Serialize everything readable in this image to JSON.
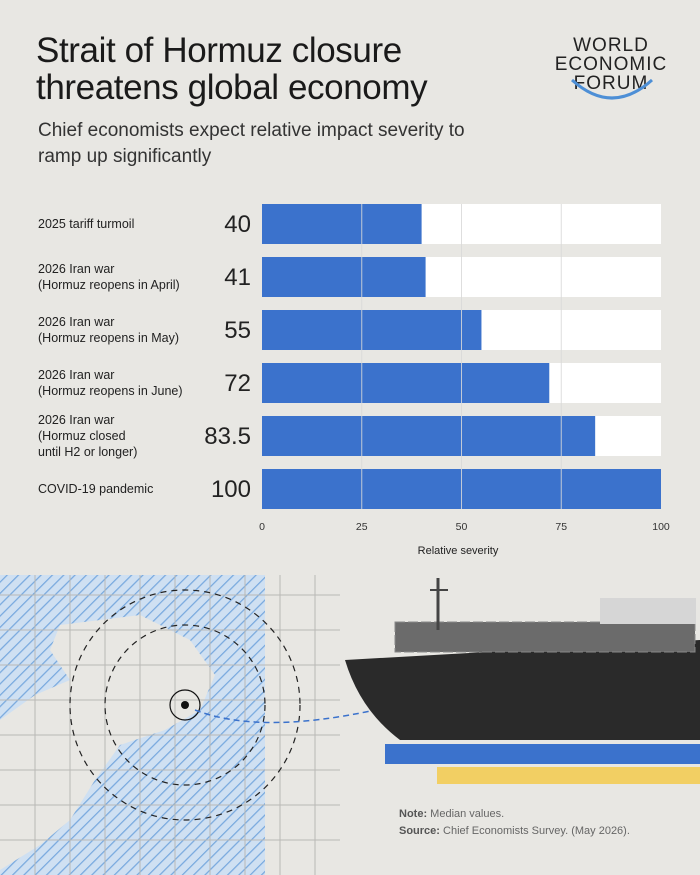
{
  "header": {
    "title": "Strait of Hormuz closure threatens global economy",
    "subtitle": "Chief economists expect relative impact severity to ramp up significantly"
  },
  "logo": {
    "lines": [
      "WORLD",
      "ECONOMIC",
      "FORUM"
    ]
  },
  "chart_data": {
    "type": "bar",
    "orientation": "horizontal",
    "categories": [
      [
        "2025 tariff turmoil"
      ],
      [
        "2026 Iran war",
        "(Hormuz reopens in April)"
      ],
      [
        "2026 Iran war",
        "(Hormuz reopens in May)"
      ],
      [
        "2026 Iran war",
        "(Hormuz reopens in June)"
      ],
      [
        "2026 Iran war",
        "(Hormuz closed",
        "until H2 or longer)"
      ],
      [
        "COVID-19 pandemic"
      ]
    ],
    "values": [
      40,
      41,
      55,
      72,
      83.5,
      100
    ],
    "value_labels": [
      "40",
      "41",
      "55",
      "72",
      "83.5",
      "100"
    ],
    "xlabel": "Relative severity",
    "xlim": [
      0,
      100
    ],
    "xticks": [
      "0",
      "25",
      "50",
      "75",
      "100"
    ],
    "grid": true,
    "colors": {
      "bar": "#3b72cc",
      "track": "#ffffff",
      "grid": "#d9d9d9"
    }
  },
  "footer": {
    "note_label": "Note:",
    "note_text": "Median values.",
    "source_label": "Source:",
    "source_text": "Chief Economists Survey. (May 2026)."
  }
}
